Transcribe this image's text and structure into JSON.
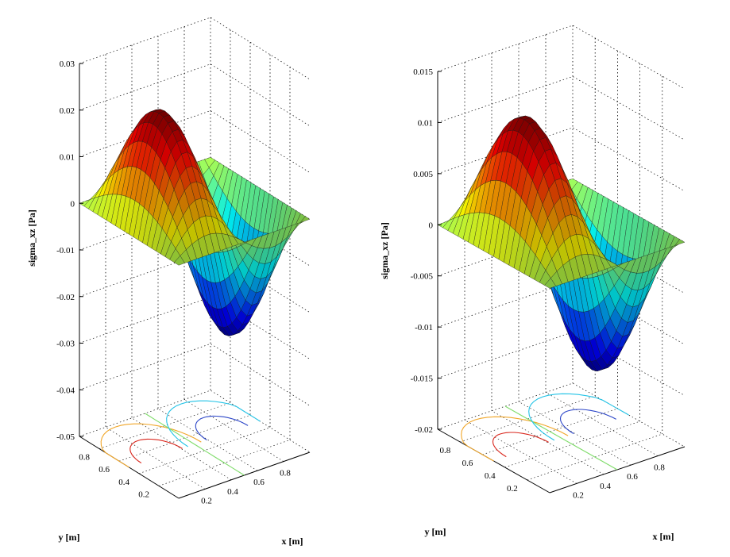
{
  "chart_data": [
    {
      "type": "surface3d",
      "title": "",
      "zlabel": "sigma_xz [Pa]",
      "xlabel": "x [m]",
      "ylabel": "y [m]",
      "zlim": [
        -0.05,
        0.03
      ],
      "z_ticks": [
        "0.03",
        "0.02",
        "0.01",
        "0",
        "-0.01",
        "-0.02",
        "-0.03",
        "-0.04",
        "-0.05"
      ],
      "x_ticks": [
        "0.2",
        "0.4",
        "0.6",
        "0.8"
      ],
      "y_ticks": [
        "0.8",
        "0.6",
        "0.4",
        "0.2"
      ],
      "surface_peak": 0.024,
      "surface_trough": -0.029,
      "colormap": "jet",
      "contours_projected": true,
      "grid": true
    },
    {
      "type": "surface3d",
      "title": "",
      "zlabel": "sigma_xz [Pa]",
      "xlabel": "x [m]",
      "ylabel": "y [m]",
      "zlim": [
        -0.02,
        0.015
      ],
      "z_ticks": [
        "0.015",
        "0.01",
        "0.005",
        "0",
        "-0.005",
        "-0.01",
        "-0.015",
        "-0.02"
      ],
      "x_ticks": [
        "0.2",
        "0.4",
        "0.6",
        "0.8"
      ],
      "y_ticks": [
        "0.8",
        "0.6",
        "0.4",
        "0.2"
      ],
      "surface_peak": 0.0125,
      "surface_trough": -0.0145,
      "colormap": "jet",
      "contours_projected": true,
      "grid": true
    }
  ]
}
